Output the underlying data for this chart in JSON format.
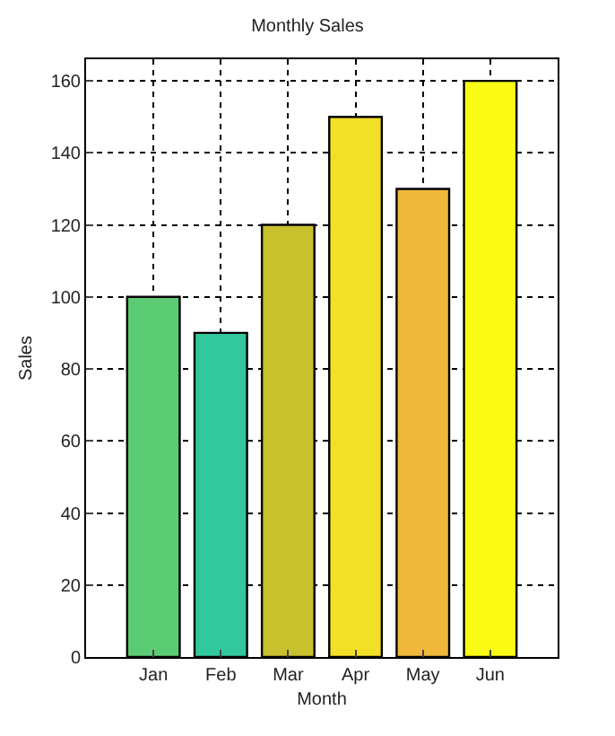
{
  "chart_data": {
    "type": "bar",
    "title": "Monthly Sales",
    "xlabel": "Month",
    "ylabel": "Sales",
    "categories": [
      "Jan",
      "Feb",
      "Mar",
      "Apr",
      "May",
      "Jun"
    ],
    "values": [
      100,
      90,
      120,
      150,
      130,
      160
    ],
    "colors": [
      "#5ccc74",
      "#30c89c",
      "#c8c02c",
      "#f2e026",
      "#f0b83a",
      "#fafa14"
    ],
    "ylim": [
      0,
      166
    ],
    "yticks": [
      0,
      20,
      40,
      60,
      80,
      100,
      120,
      140,
      160
    ],
    "grid": true,
    "legend": false
  }
}
